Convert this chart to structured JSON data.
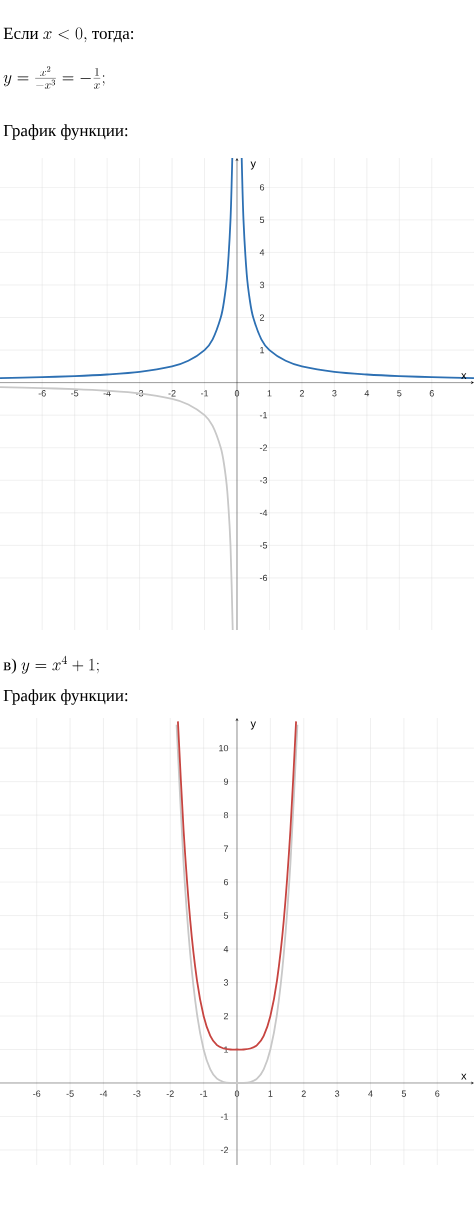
{
  "chart_data": [
    {
      "type": "line",
      "title": "График функции:",
      "xlabel": "x",
      "ylabel": "y",
      "annotations": [
        "Если",
        "x < 0,",
        "тогда:",
        "y = \\frac{x^2}{-x^3} = -\\frac{1}{x};"
      ],
      "xlim": [
        -7.3,
        7.3
      ],
      "ylim": [
        -7.6,
        6.9
      ],
      "xticks": [
        -6,
        -5,
        -4,
        -3,
        -2,
        -1,
        0,
        1,
        2,
        3,
        4,
        5,
        6
      ],
      "yticks": [
        -6,
        -5,
        -4,
        -3,
        -2,
        -1,
        1,
        2,
        3,
        4,
        5,
        6
      ],
      "grid": true,
      "series": [
        {
          "color": "#2d70b3",
          "x": [
            -7.3,
            -6,
            -5,
            -4,
            -3,
            -2,
            -1.5,
            -1,
            -0.75,
            -0.5,
            -0.4,
            -0.3,
            -0.2,
            -0.145
          ],
          "values": [
            0.14,
            0.17,
            0.2,
            0.25,
            0.33,
            0.5,
            0.67,
            1,
            1.33,
            2,
            2.5,
            3.33,
            5,
            6.9
          ]
        },
        {
          "color": "#2d70b3",
          "x": [
            0.145,
            0.2,
            0.3,
            0.4,
            0.5,
            0.75,
            1,
            1.5,
            2,
            3,
            4,
            5,
            6,
            7.3
          ],
          "values": [
            6.9,
            5,
            3.33,
            2.5,
            2,
            1.33,
            1,
            0.67,
            0.5,
            0.33,
            0.25,
            0.2,
            0.17,
            0.14
          ]
        },
        {
          "color": "#c8c8c8",
          "x": [
            -7.3,
            -6,
            -5,
            -4,
            -3,
            -2,
            -1.5,
            -1,
            -0.75,
            -0.5,
            -0.4,
            -0.3,
            -0.2,
            -0.132
          ],
          "values": [
            -0.14,
            -0.17,
            -0.2,
            -0.25,
            -0.33,
            -0.5,
            -0.67,
            -1,
            -1.33,
            -2,
            -2.5,
            -3.33,
            -5,
            -7.6
          ]
        }
      ]
    },
    {
      "type": "line",
      "title": "График функции:",
      "xlabel": "x",
      "ylabel": "y",
      "annotations": [
        "в)",
        "y = x^4 + 1;"
      ],
      "xlim": [
        -7.1,
        7.1
      ],
      "ylim": [
        -2.45,
        10.9
      ],
      "xticks": [
        -6,
        -5,
        -4,
        -3,
        -2,
        -1,
        0,
        1,
        2,
        3,
        4,
        5,
        6
      ],
      "yticks": [
        -2,
        -1,
        1,
        2,
        3,
        4,
        5,
        6,
        7,
        8,
        9,
        10
      ],
      "grid": true,
      "series": [
        {
          "color": "#c8c8c8",
          "x": [
            -1.81,
            -1.6,
            -1.4,
            -1.2,
            -1,
            -0.8,
            -0.6,
            -0.4,
            -0.2,
            0,
            0.2,
            0.4,
            0.6,
            0.8,
            1,
            1.2,
            1.4,
            1.6,
            1.81
          ],
          "values": [
            10.7,
            6.55,
            3.84,
            2.07,
            1,
            0.41,
            0.13,
            0.03,
            0,
            0,
            0,
            0.03,
            0.13,
            0.41,
            1,
            2.07,
            3.84,
            6.55,
            10.7
          ]
        },
        {
          "color": "#c74440",
          "x": [
            -1.77,
            -1.6,
            -1.4,
            -1.2,
            -1,
            -0.8,
            -0.6,
            -0.4,
            -0.2,
            0,
            0.2,
            0.4,
            0.6,
            0.8,
            1,
            1.2,
            1.4,
            1.6,
            1.77
          ],
          "values": [
            10.8,
            7.55,
            4.84,
            3.07,
            2,
            1.41,
            1.13,
            1.03,
            1,
            1,
            1,
            1.03,
            1.13,
            1.41,
            2,
            3.07,
            4.84,
            7.55,
            10.8
          ]
        }
      ]
    }
  ]
}
